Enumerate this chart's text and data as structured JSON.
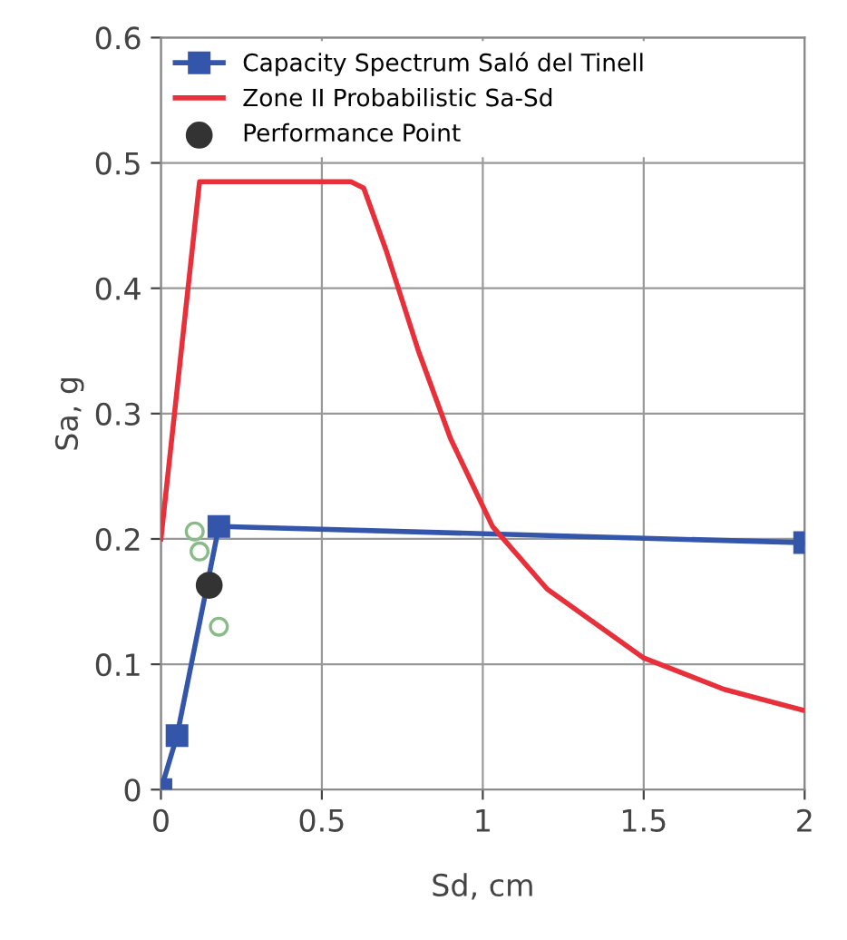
{
  "chart_data": {
    "type": "line",
    "xlabel": "Sd, cm",
    "ylabel": "Sa, g",
    "xlim": [
      0,
      2
    ],
    "ylim": [
      0,
      0.6
    ],
    "xticks": [
      0,
      0.5,
      1,
      1.5,
      2
    ],
    "yticks": [
      0,
      0.1,
      0.2,
      0.3,
      0.4,
      0.5,
      0.6
    ],
    "grid": true,
    "legend": "top left",
    "series": [
      {
        "name": "Capacity Spectrum Saló del Tinell",
        "color": "#3355aa",
        "marker": "square",
        "x": [
          0,
          0.05,
          0.18,
          2
        ],
        "values": [
          0,
          0.043,
          0.21,
          0.197
        ]
      },
      {
        "name": "Zone II Probabilistic Sa-Sd",
        "color": "#e8303a",
        "marker": "none",
        "x": [
          0,
          0.12,
          0.59,
          0.63,
          0.7,
          0.8,
          0.9,
          1.03,
          1.2,
          1.5,
          1.75,
          2
        ],
        "values": [
          0.2,
          0.485,
          0.485,
          0.48,
          0.43,
          0.35,
          0.28,
          0.21,
          0.16,
          0.105,
          0.08,
          0.063
        ]
      },
      {
        "name": "Performance Point",
        "type": "scatter",
        "color": "#333333",
        "marker": "circle",
        "x": [
          0.15
        ],
        "values": [
          0.163
        ]
      },
      {
        "type": "scatter",
        "color": "#88bb88",
        "marker": "circle",
        "x": [
          0.105,
          0.12,
          0.18
        ],
        "values": [
          0.206,
          0.19,
          0.13
        ]
      }
    ]
  }
}
